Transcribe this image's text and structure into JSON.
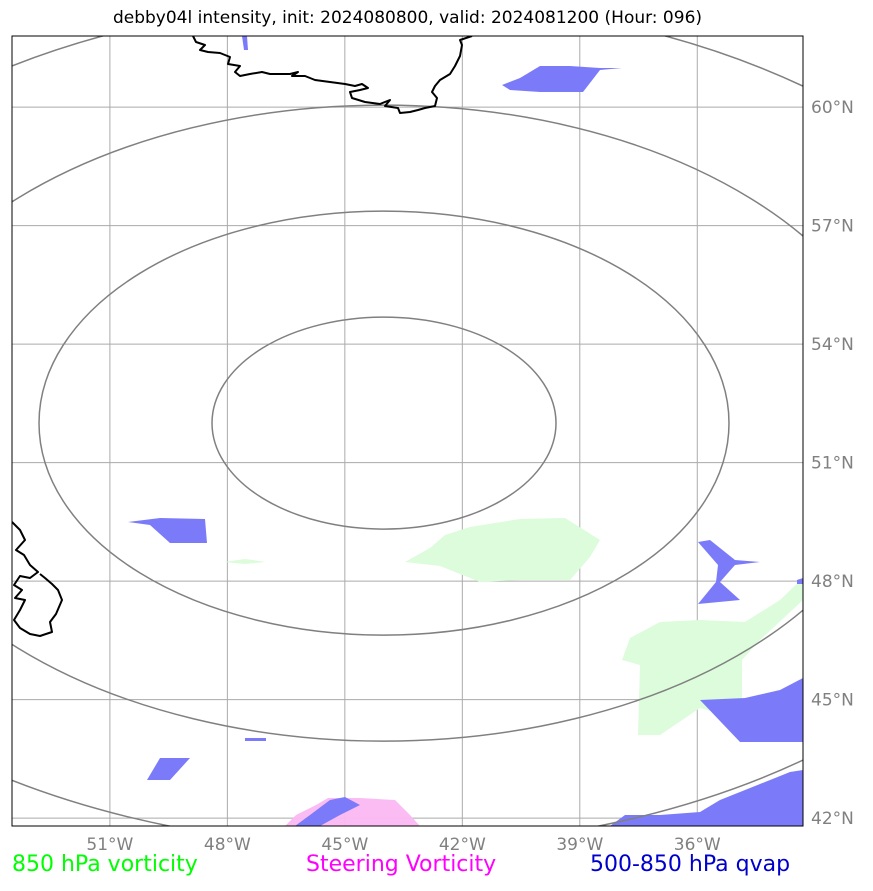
{
  "title": "debby04l intensity, init: 2024080800, valid: 2024081200 (Hour: 096)",
  "map": {
    "lon_range": [
      -53.5,
      -33.3
    ],
    "lat_range": [
      41.8,
      61.8
    ],
    "lon_ticks": [
      {
        "value": -51,
        "label": "51°W"
      },
      {
        "value": -48,
        "label": "48°W"
      },
      {
        "value": -45,
        "label": "45°W"
      },
      {
        "value": -42,
        "label": "42°W"
      },
      {
        "value": -39,
        "label": "39°W"
      },
      {
        "value": -36,
        "label": "36°W"
      }
    ],
    "lat_ticks": [
      {
        "value": 60,
        "label": "60°N"
      },
      {
        "value": 57,
        "label": "57°N"
      },
      {
        "value": 54,
        "label": "54°N"
      },
      {
        "value": 51,
        "label": "51°N"
      },
      {
        "value": 48,
        "label": "48°N"
      },
      {
        "value": 45,
        "label": "45°N"
      },
      {
        "value": 42,
        "label": "42°N"
      }
    ],
    "range_rings": {
      "center": {
        "lon": -44.0,
        "lat": 52.0
      },
      "count": 4,
      "color": "#808080"
    }
  },
  "legend": [
    {
      "label": "850 hPa vorticity",
      "color": "#00ff00"
    },
    {
      "label": "Steering Vorticity",
      "color": "#ff00ff"
    },
    {
      "label": "500-850 hPa qvap",
      "color": "#0000cc"
    }
  ],
  "colors": {
    "vorticity_fill": "#dcfcdc",
    "steering_fill": "#fbb8f2",
    "qvap_fill": "#7b7bfa",
    "gridline": "#aaaaaa",
    "coastline": "#000000"
  }
}
